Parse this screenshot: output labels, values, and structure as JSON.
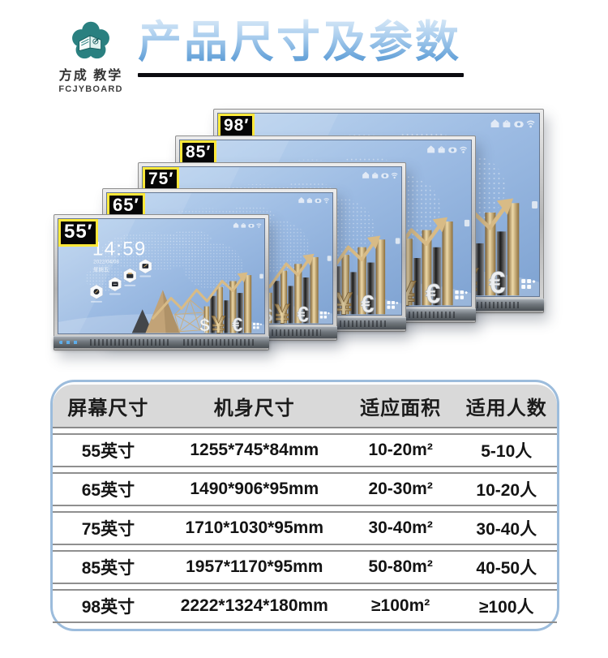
{
  "brand": {
    "name_cn": "方成 教学",
    "name_en": "FCJYBOARD"
  },
  "header": {
    "title": "产品尺寸及参数"
  },
  "displays": [
    {
      "size_label": "98′"
    },
    {
      "size_label": "85′"
    },
    {
      "size_label": "75′"
    },
    {
      "size_label": "65′"
    },
    {
      "size_label": "55′"
    }
  ],
  "screen": {
    "clock": "14:59",
    "date": "2022/04/08",
    "weekday": "星期五",
    "currency_dollar": "$",
    "currency_yen": "¥",
    "currency_euro": "€"
  },
  "table": {
    "headers": [
      "屏幕尺寸",
      "机身尺寸",
      "适应面积",
      "适用人数"
    ],
    "rows": [
      [
        "55英寸",
        "1255*745*84mm",
        "10-20m²",
        "5-10人"
      ],
      [
        "65英寸",
        "1490*906*95mm",
        "20-30m²",
        "10-20人"
      ],
      [
        "75英寸",
        "1710*1030*95mm",
        "30-40m²",
        "30-40人"
      ],
      [
        "85英寸",
        "1957*1170*95mm",
        "50-80m²",
        "40-50人"
      ],
      [
        "98英寸",
        "2222*1324*180mm",
        "≥100m²",
        "≥100人"
      ]
    ]
  },
  "colors": {
    "brand_teal": "#2a8080",
    "title_blue": "#4f8fcb",
    "underline_black": "#0b0b10",
    "label_yellow": "#ffe93a",
    "screen_blue": "#9bb9e2",
    "table_border_blue": "#9cbcdc",
    "table_header_gray": "#d9d9d9"
  }
}
